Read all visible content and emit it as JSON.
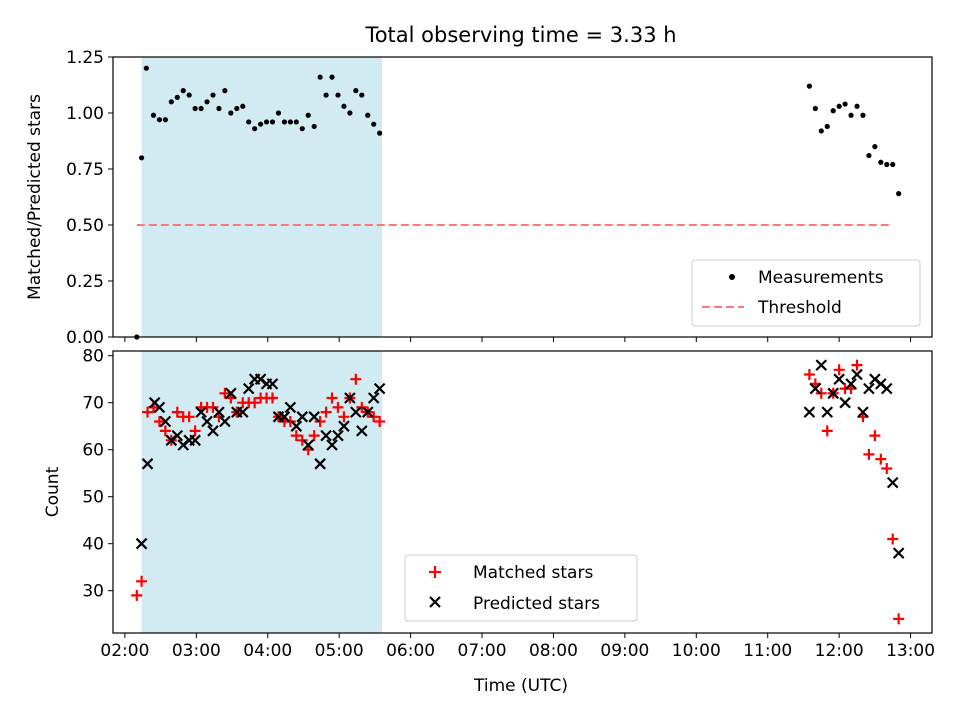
{
  "chart_data": {
    "title": "Total observing time = 3.33 h",
    "xlabel": "Time (UTC)",
    "x_tick_labels": [
      "02:00",
      "03:00",
      "04:00",
      "05:00",
      "06:00",
      "07:00",
      "08:00",
      "09:00",
      "10:00",
      "11:00",
      "12:00",
      "13:00"
    ],
    "x_range": [
      "01:50",
      "13:18"
    ],
    "shaded_interval": [
      "02:14",
      "05:36"
    ],
    "colors": {
      "shade": "#add8e6",
      "threshold": "#ff7777",
      "matched": "#ff0000",
      "predicted": "#000000",
      "measurement": "#000000"
    },
    "panels": [
      {
        "type": "scatter",
        "ylabel": "Matched/Predicted stars",
        "ylim": [
          0,
          1.25
        ],
        "y_tick_labels": [
          "0.00",
          "0.25",
          "0.50",
          "0.75",
          "1.00",
          "1.25"
        ],
        "legend_position": "lower-right",
        "series": [
          {
            "name": "Measurements",
            "marker": "dot",
            "x": [
              "02:10",
              "02:14",
              "02:18",
              "02:24",
              "02:29",
              "02:34",
              "02:39",
              "02:44",
              "02:49",
              "02:54",
              "02:59",
              "03:04",
              "03:09",
              "03:14",
              "03:19",
              "03:24",
              "03:29",
              "03:34",
              "03:39",
              "03:44",
              "03:49",
              "03:54",
              "03:59",
              "04:04",
              "04:09",
              "04:14",
              "04:19",
              "04:24",
              "04:29",
              "04:34",
              "04:39",
              "04:44",
              "04:49",
              "04:54",
              "04:59",
              "05:04",
              "05:09",
              "05:14",
              "05:19",
              "05:24",
              "05:29",
              "05:34",
              "11:35",
              "11:40",
              "11:45",
              "11:50",
              "11:55",
              "12:00",
              "12:05",
              "12:10",
              "12:15",
              "12:20",
              "12:25",
              "12:30",
              "12:35",
              "12:40",
              "12:45",
              "12:50"
            ],
            "y": [
              0.0,
              0.8,
              1.2,
              0.99,
              0.97,
              0.97,
              1.05,
              1.07,
              1.1,
              1.08,
              1.02,
              1.02,
              1.05,
              1.08,
              1.02,
              1.1,
              1.0,
              1.02,
              1.03,
              0.96,
              0.93,
              0.95,
              0.96,
              0.96,
              1.0,
              0.96,
              0.96,
              0.96,
              0.93,
              0.99,
              0.94,
              1.16,
              1.08,
              1.16,
              1.08,
              1.03,
              1.0,
              1.1,
              1.08,
              0.99,
              0.95,
              0.91,
              1.12,
              1.02,
              0.92,
              0.94,
              1.01,
              1.03,
              1.04,
              0.99,
              1.03,
              0.99,
              0.81,
              0.85,
              0.78,
              0.77,
              0.77,
              0.64
            ]
          },
          {
            "name": "Threshold",
            "style": "dashed",
            "x": [
              "02:10",
              "12:45"
            ],
            "y": [
              0.5,
              0.5
            ]
          }
        ]
      },
      {
        "type": "scatter",
        "ylabel": "Count",
        "ylim": [
          21,
          81
        ],
        "y_tick_labels": [
          "30",
          "40",
          "50",
          "60",
          "70",
          "80"
        ],
        "legend_position": "lower-center",
        "series": [
          {
            "name": "Matched stars",
            "marker": "plus",
            "x": [
              "02:10",
              "02:14",
              "02:19",
              "02:24",
              "02:29",
              "02:34",
              "02:39",
              "02:44",
              "02:49",
              "02:54",
              "02:59",
              "03:04",
              "03:09",
              "03:14",
              "03:19",
              "03:24",
              "03:29",
              "03:34",
              "03:39",
              "03:44",
              "03:49",
              "03:54",
              "03:59",
              "04:04",
              "04:09",
              "04:14",
              "04:19",
              "04:24",
              "04:29",
              "04:34",
              "04:39",
              "04:44",
              "04:49",
              "04:54",
              "04:59",
              "05:04",
              "05:09",
              "05:14",
              "05:19",
              "05:24",
              "05:29",
              "05:34",
              "11:35",
              "11:40",
              "11:45",
              "11:50",
              "11:55",
              "12:00",
              "12:05",
              "12:10",
              "12:15",
              "12:20",
              "12:25",
              "12:30",
              "12:35",
              "12:40",
              "12:45",
              "12:50"
            ],
            "y": [
              29,
              32,
              68,
              69,
              66,
              64,
              62,
              68,
              67,
              67,
              64,
              69,
              69,
              69,
              67,
              72,
              71,
              68,
              70,
              70,
              70,
              71,
              71,
              71,
              67,
              66,
              66,
              63,
              62,
              60,
              63,
              66,
              68,
              71,
              69,
              67,
              71,
              75,
              69,
              68,
              67,
              66,
              76,
              74,
              72,
              64,
              72,
              77,
              73,
              73,
              78,
              67,
              59,
              63,
              58,
              56,
              41,
              24
            ]
          },
          {
            "name": "Predicted stars",
            "marker": "x",
            "x": [
              "02:14",
              "02:19",
              "02:25",
              "02:29",
              "02:34",
              "02:39",
              "02:44",
              "02:49",
              "02:54",
              "02:59",
              "03:04",
              "03:09",
              "03:14",
              "03:19",
              "03:24",
              "03:29",
              "03:34",
              "03:39",
              "03:44",
              "03:49",
              "03:54",
              "03:59",
              "04:04",
              "04:09",
              "04:14",
              "04:19",
              "04:24",
              "04:29",
              "04:34",
              "04:39",
              "04:44",
              "04:49",
              "04:54",
              "04:59",
              "05:04",
              "05:09",
              "05:14",
              "05:19",
              "05:24",
              "05:29",
              "05:34",
              "11:35",
              "11:40",
              "11:45",
              "11:50",
              "11:55",
              "12:00",
              "12:05",
              "12:10",
              "12:15",
              "12:20",
              "12:25",
              "12:30",
              "12:35",
              "12:40",
              "12:45",
              "12:50"
            ],
            "y": [
              40,
              57,
              70,
              69,
              66,
              62,
              63,
              61,
              62,
              62,
              68,
              66,
              64,
              68,
              66,
              72,
              68,
              68,
              73,
              75,
              75,
              74,
              74,
              67,
              67,
              69,
              65,
              67,
              61,
              67,
              57,
              63,
              61,
              63,
              65,
              71,
              68,
              64,
              68,
              71,
              73,
              68,
              73,
              78,
              68,
              72,
              75,
              70,
              74,
              76,
              68,
              73,
              75,
              74,
              73,
              53,
              38
            ]
          }
        ]
      }
    ]
  }
}
